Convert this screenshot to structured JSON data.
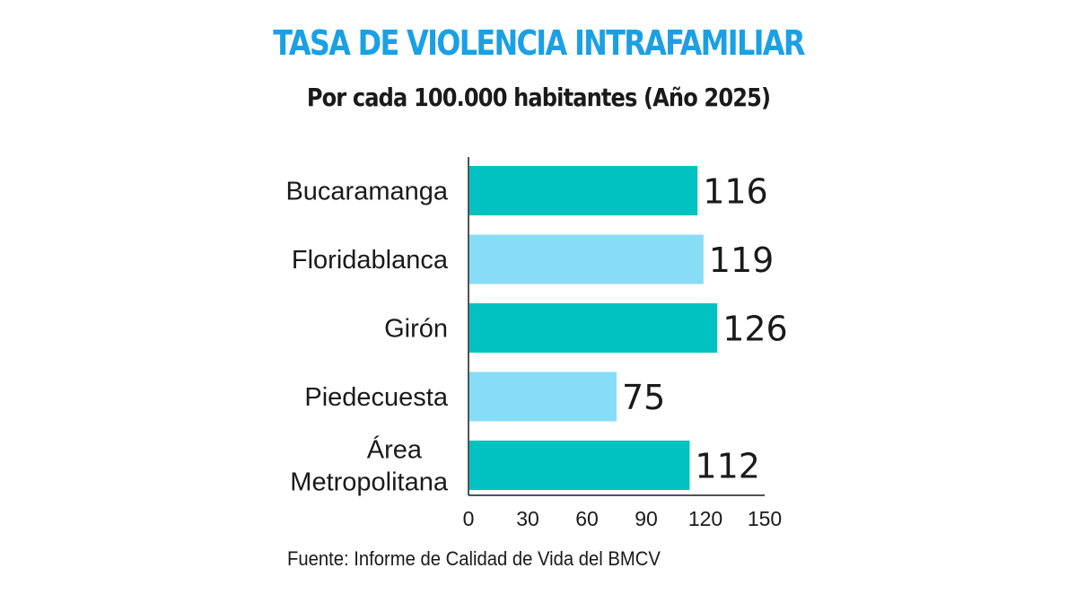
{
  "chart_data": {
    "type": "bar",
    "orientation": "horizontal",
    "title": "TASA DE VIOLENCIA INTRAFAMILIAR",
    "subtitle": "Por cada 100.000 habitantes (Año 2025)",
    "categories": [
      "Bucaramanga",
      "Floridablanca",
      "Girón",
      "Piedecuesta",
      "Área Metropolitana"
    ],
    "category_lines": [
      [
        "Bucaramanga"
      ],
      [
        "Floridablanca"
      ],
      [
        "Girón"
      ],
      [
        "Piedecuesta"
      ],
      [
        "Área",
        "Metropolitana"
      ]
    ],
    "values": [
      116,
      119,
      126,
      75,
      112
    ],
    "value_labels": [
      "116",
      "119",
      "126",
      "75",
      "112"
    ],
    "colors": [
      "#00c2c0",
      "#87dcf6",
      "#00c2c0",
      "#87dcf6",
      "#00c2c0"
    ],
    "xlim": [
      0,
      150
    ],
    "xticks": [
      0,
      30,
      60,
      90,
      120,
      150
    ],
    "xtick_labels": [
      "0",
      "30",
      "60",
      "90",
      "120",
      "150"
    ],
    "grid": false,
    "legend": "none",
    "source": "Fuente: Informe de Calidad de Vida del BMCV"
  }
}
